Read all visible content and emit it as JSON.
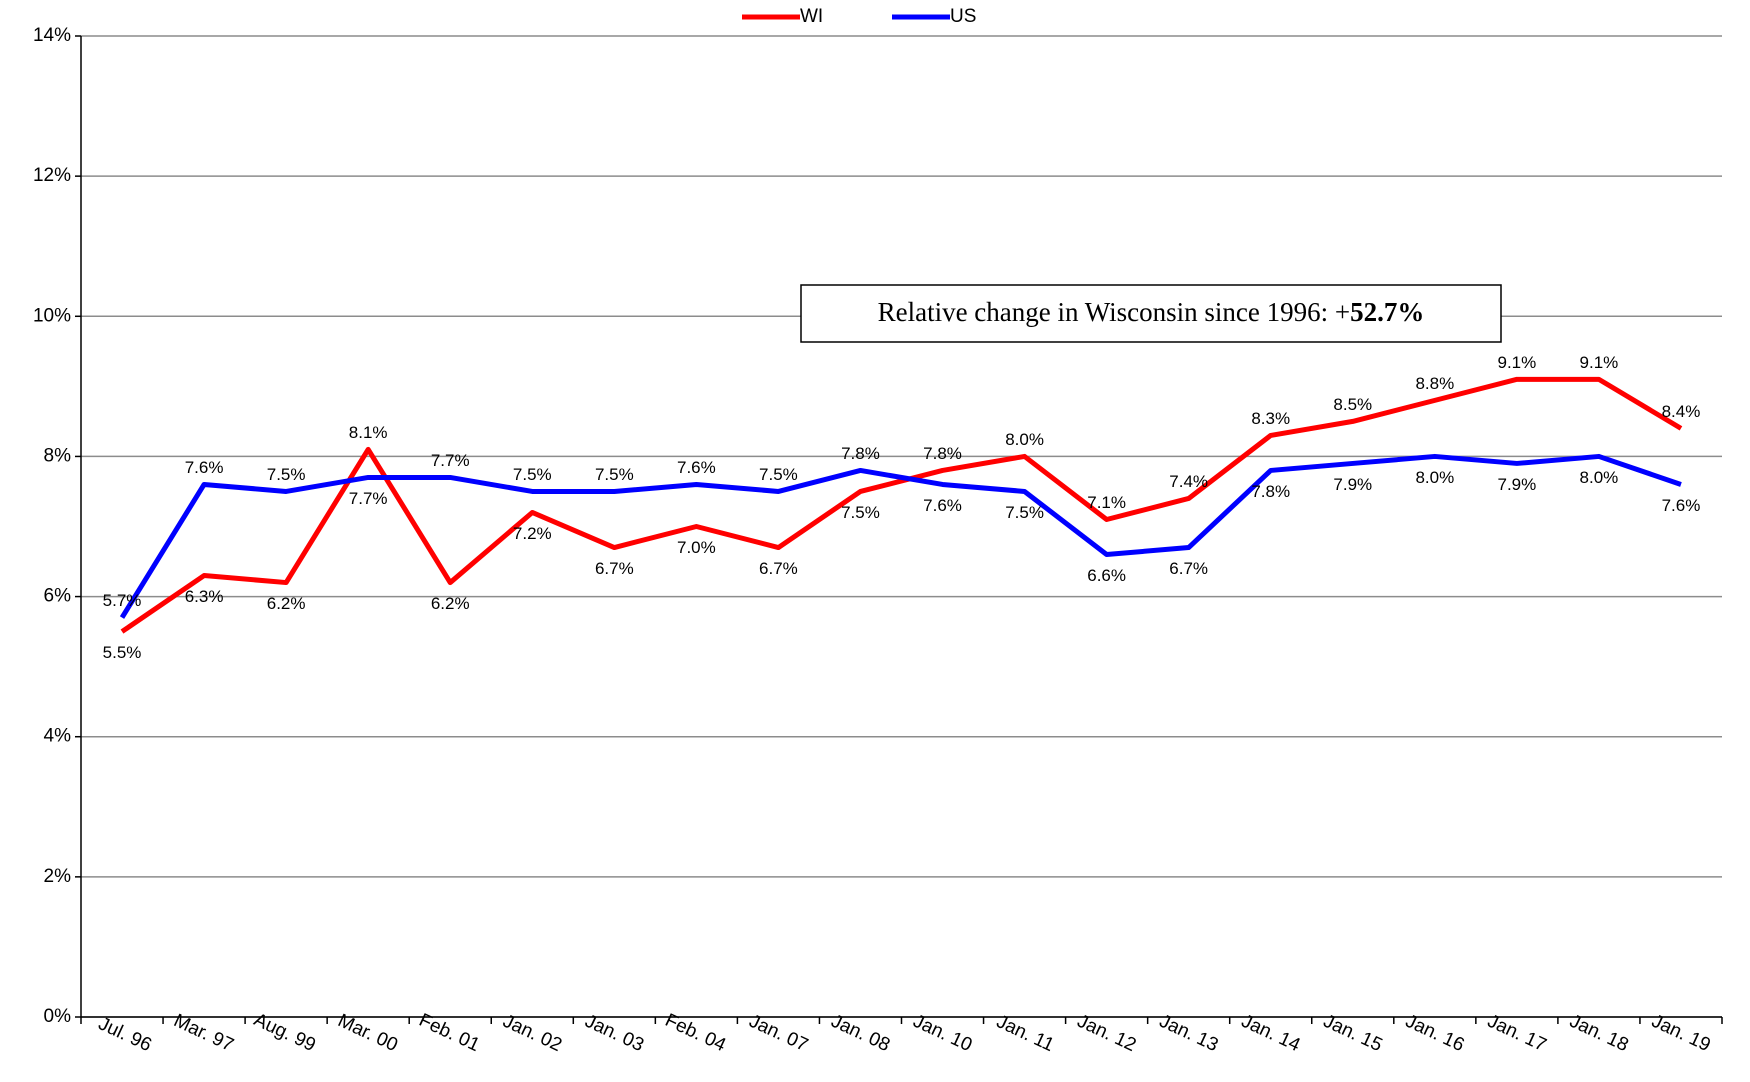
{
  "chart_data": {
    "type": "line",
    "categories": [
      "Jul. 96",
      "Mar. 97",
      "Aug. 99",
      "Mar. 00",
      "Feb. 01",
      "Jan. 02",
      "Jan. 03",
      "Feb. 04",
      "Jan. 07",
      "Jan. 08",
      "Jan. 10",
      "Jan. 11",
      "Jan. 12",
      "Jan. 13",
      "Jan. 14",
      "Jan. 15",
      "Jan. 16",
      "Jan. 17",
      "Jan. 18",
      "Jan. 19"
    ],
    "series": [
      {
        "name": "WI",
        "color": "#ff0000",
        "values": [
          5.5,
          6.3,
          6.2,
          8.1,
          6.2,
          7.2,
          6.7,
          7.0,
          6.7,
          7.5,
          7.8,
          8.0,
          7.1,
          7.4,
          8.3,
          8.5,
          8.8,
          9.1,
          9.1,
          8.4
        ],
        "value_labels": [
          "5.5%",
          "6.3%",
          "6.2%",
          "8.1%",
          "6.2%",
          "7.2%",
          "6.7%",
          "7.0%",
          "6.7%",
          "7.5%",
          "7.8%",
          "8.0%",
          "7.1%",
          "7.4%",
          "8.3%",
          "8.5%",
          "8.8%",
          "9.1%",
          "9.1%",
          "8.4%"
        ]
      },
      {
        "name": "US",
        "color": "#0000ff",
        "values": [
          5.7,
          7.6,
          7.5,
          7.7,
          7.7,
          7.5,
          7.5,
          7.6,
          7.5,
          7.8,
          7.6,
          7.5,
          6.6,
          6.7,
          7.8,
          7.9,
          8.0,
          7.9,
          8.0,
          7.6
        ],
        "value_labels": [
          "5.7%",
          "7.6%",
          "7.5%",
          "7.7%",
          "7.7%",
          "7.5%",
          "7.5%",
          "7.6%",
          "7.5%",
          "7.8%",
          "7.6%",
          "7.5%",
          "6.6%",
          "6.7%",
          "7.8%",
          "7.9%",
          "8.0%",
          "7.9%",
          "8.0%",
          "7.6%"
        ]
      }
    ],
    "ylim": [
      0,
      14
    ],
    "yticks": [
      {
        "value": 0,
        "label": "0%"
      },
      {
        "value": 2,
        "label": "2%"
      },
      {
        "value": 4,
        "label": "4%"
      },
      {
        "value": 6,
        "label": "6%"
      },
      {
        "value": 8,
        "label": "8%"
      },
      {
        "value": 10,
        "label": "10%"
      },
      {
        "value": 12,
        "label": "12%"
      },
      {
        "value": 14,
        "label": "14%"
      }
    ],
    "grid": true,
    "legend": "top",
    "annotation": {
      "text": "Relative change in Wisconsin since 1996: +",
      "bold": "52.7%"
    }
  }
}
